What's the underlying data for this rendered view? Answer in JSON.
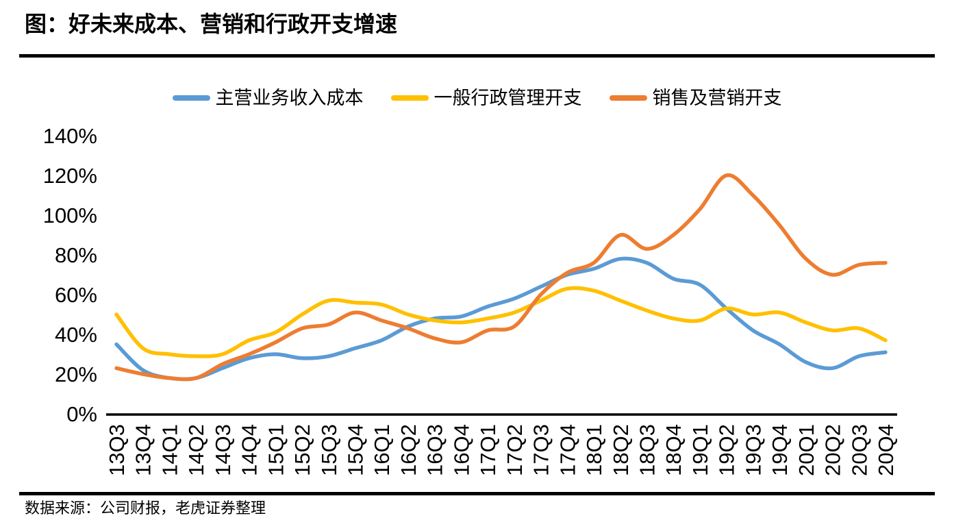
{
  "page": {
    "title": "图：好未来成本、营销和行政开支增速",
    "source_note": "数据来源：公司财报，老虎证券整理"
  },
  "colors": {
    "axis": "#000000",
    "text": "#000000",
    "rule": "#000000",
    "background": "#ffffff"
  },
  "chart_data": {
    "type": "line",
    "title": "图：好未来成本、营销和行政开支增速",
    "unit": "percent",
    "grid": false,
    "legend_position": "top",
    "line_smoothing": true,
    "ylim": [
      0,
      140
    ],
    "y_tick_step": 20,
    "y_tick_labels": [
      "0%",
      "20%",
      "40%",
      "60%",
      "80%",
      "100%",
      "120%",
      "140%"
    ],
    "categories": [
      "13Q3",
      "13Q4",
      "14Q1",
      "14Q2",
      "14Q3",
      "14Q4",
      "15Q1",
      "15Q2",
      "15Q3",
      "15Q4",
      "16Q1",
      "16Q2",
      "16Q3",
      "16Q4",
      "17Q1",
      "17Q2",
      "17Q3",
      "17Q4",
      "18Q1",
      "18Q2",
      "18Q3",
      "18Q4",
      "19Q1",
      "19Q2",
      "19Q3",
      "19Q4",
      "20Q1",
      "20Q2",
      "20Q3",
      "20Q4"
    ],
    "series": [
      {
        "name": "主营业务收入成本",
        "color": "#5B9BD5",
        "values": [
          35,
          22,
          18,
          18,
          23,
          28,
          30,
          28,
          29,
          33,
          37,
          44,
          48,
          49,
          54,
          58,
          64,
          70,
          73,
          78,
          76,
          68,
          65,
          53,
          42,
          35,
          26,
          23,
          29,
          31
        ]
      },
      {
        "name": "一般行政管理开支",
        "color": "#FFC000",
        "values": [
          50,
          33,
          30,
          29,
          30,
          37,
          41,
          50,
          57,
          56,
          55,
          50,
          47,
          46,
          48,
          51,
          57,
          63,
          62,
          57,
          52,
          48,
          47,
          53,
          50,
          51,
          46,
          42,
          43,
          37
        ]
      },
      {
        "name": "销售及营销开支",
        "color": "#ED7D31",
        "values": [
          23,
          20,
          18,
          18,
          25,
          30,
          36,
          43,
          45,
          51,
          47,
          43,
          38,
          36,
          42,
          44,
          60,
          71,
          76,
          90,
          83,
          90,
          103,
          120,
          110,
          95,
          78,
          70,
          75,
          76
        ]
      }
    ]
  }
}
